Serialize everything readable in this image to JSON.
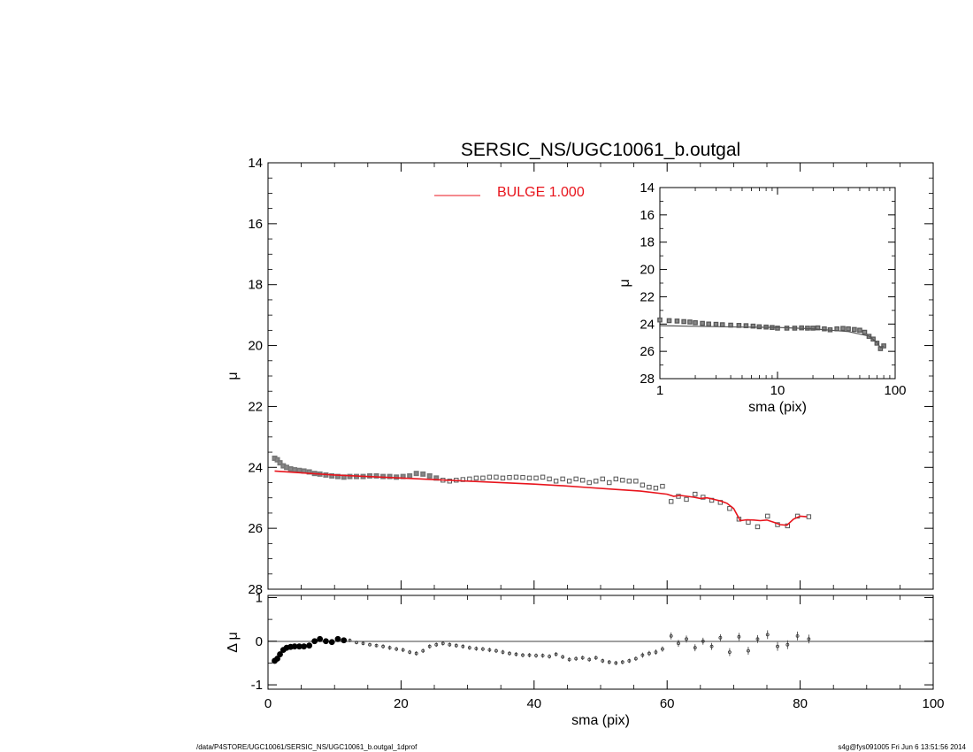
{
  "chart_data": [
    {
      "panel": "main",
      "type": "scatter",
      "title": "SERSIC_NS/UGC10061_b.outgal",
      "xlabel": "",
      "ylabel": "μ",
      "xlim": [
        0,
        100
      ],
      "ylim": [
        28,
        14
      ],
      "x_ticks": [
        "0",
        "20",
        "40",
        "60",
        "80",
        "100"
      ],
      "y_ticks": [
        "14",
        "16",
        "18",
        "20",
        "22",
        "24",
        "26",
        "28"
      ],
      "legend": {
        "label": "BULGE  1.000",
        "color": "#e8141c",
        "placement": "top-center"
      },
      "series": [
        {
          "role": "data",
          "style": "grey open squares",
          "x": [
            1.0,
            1.4,
            1.8,
            2.3,
            2.8,
            3.4,
            4.0,
            4.7,
            5.4,
            6.2,
            7.0,
            7.8,
            8.7,
            9.6,
            10.5,
            11.4,
            12.3,
            13.3,
            14.3,
            15.3,
            16.3,
            17.3,
            18.3,
            19.3,
            20.3,
            21.3,
            22.3,
            23.3,
            24.3,
            25.3,
            26.3,
            27.3,
            28.3,
            29.3,
            30.3,
            31.3,
            32.3,
            33.3,
            34.3,
            35.3,
            36.3,
            37.3,
            38.3,
            39.3,
            40.3,
            41.3,
            42.3,
            43.3,
            44.3,
            45.3,
            46.3,
            47.3,
            48.3,
            49.3,
            50.3,
            51.3,
            52.3,
            53.3,
            54.3,
            55.3,
            56.3,
            57.3,
            58.3,
            59.3,
            60.6,
            61.7,
            62.9,
            64.2,
            65.4,
            66.7,
            68.0,
            69.4,
            70.8,
            72.2,
            73.6,
            75.1,
            76.6,
            78.1,
            79.6,
            81.3
          ],
          "y": [
            23.7,
            23.75,
            23.85,
            23.95,
            24.0,
            24.05,
            24.08,
            24.1,
            24.12,
            24.15,
            24.2,
            24.22,
            24.25,
            24.28,
            24.3,
            24.32,
            24.3,
            24.3,
            24.3,
            24.28,
            24.28,
            24.3,
            24.3,
            24.32,
            24.3,
            24.28,
            24.2,
            24.22,
            24.28,
            24.35,
            24.42,
            24.45,
            24.42,
            24.4,
            24.38,
            24.35,
            24.35,
            24.32,
            24.32,
            24.35,
            24.33,
            24.32,
            24.33,
            24.35,
            24.35,
            24.32,
            24.38,
            24.45,
            24.38,
            24.45,
            24.38,
            24.42,
            24.5,
            24.45,
            24.38,
            24.5,
            24.38,
            24.42,
            24.45,
            24.45,
            24.58,
            24.65,
            24.68,
            24.62,
            25.12,
            24.95,
            25.05,
            24.88,
            24.98,
            25.08,
            25.15,
            25.35,
            25.7,
            25.8,
            25.95,
            25.6,
            25.88,
            25.92,
            25.6,
            25.62
          ]
        },
        {
          "role": "model",
          "name": "BULGE  1.000",
          "color": "#e8141c",
          "style": "line",
          "x": [
            1,
            10,
            20,
            30,
            40,
            44,
            48,
            52,
            56,
            60,
            61,
            62,
            63,
            64,
            65,
            66,
            67,
            68,
            69,
            70,
            71,
            72,
            73,
            74,
            75,
            76,
            77,
            78,
            79,
            80,
            81
          ],
          "y": [
            24.12,
            24.25,
            24.35,
            24.45,
            24.55,
            24.6,
            24.66,
            24.72,
            24.78,
            24.88,
            24.95,
            24.92,
            24.95,
            24.98,
            25.02,
            25.0,
            25.05,
            25.1,
            25.18,
            25.35,
            25.75,
            25.72,
            25.73,
            25.75,
            25.73,
            25.8,
            25.88,
            25.9,
            25.7,
            25.6,
            25.62
          ]
        }
      ]
    },
    {
      "panel": "residual",
      "type": "scatter",
      "xlabel": "sma (pix)",
      "ylabel": "Δ μ",
      "xlim": [
        0,
        100
      ],
      "ylim": [
        -1.1,
        1.05
      ],
      "x_ticks": [
        "0",
        "20",
        "40",
        "60",
        "80",
        "100"
      ],
      "y_ticks": [
        "1",
        "0",
        "-1"
      ],
      "grid": false,
      "reference_line": 0,
      "series": [
        {
          "role": "residual",
          "style": "black points with error bars",
          "x": [
            1.0,
            1.4,
            1.8,
            2.3,
            2.8,
            3.4,
            4.0,
            4.7,
            5.4,
            6.2,
            7.0,
            7.8,
            8.7,
            9.6,
            10.5,
            11.4,
            12.3,
            13.3,
            14.3,
            15.3,
            16.3,
            17.3,
            18.3,
            19.3,
            20.3,
            21.3,
            22.3,
            23.3,
            24.3,
            25.3,
            26.3,
            27.3,
            28.3,
            29.3,
            30.3,
            31.3,
            32.3,
            33.3,
            34.3,
            35.3,
            36.3,
            37.3,
            38.3,
            39.3,
            40.3,
            41.3,
            42.3,
            43.3,
            44.3,
            45.3,
            46.3,
            47.3,
            48.3,
            49.3,
            50.3,
            51.3,
            52.3,
            53.3,
            54.3,
            55.3,
            56.3,
            57.3,
            58.3,
            59.3,
            60.6,
            61.7,
            62.9,
            64.2,
            65.4,
            66.7,
            68.0,
            69.4,
            70.8,
            72.2,
            73.6,
            75.1,
            76.6,
            78.1,
            79.6,
            81.3
          ],
          "y": [
            -0.45,
            -0.4,
            -0.3,
            -0.2,
            -0.15,
            -0.13,
            -0.12,
            -0.12,
            -0.12,
            -0.1,
            0.0,
            0.05,
            0.0,
            -0.02,
            0.05,
            0.02,
            0.02,
            -0.03,
            -0.05,
            -0.08,
            -0.1,
            -0.12,
            -0.15,
            -0.18,
            -0.2,
            -0.25,
            -0.28,
            -0.22,
            -0.12,
            -0.08,
            -0.05,
            -0.08,
            -0.1,
            -0.12,
            -0.15,
            -0.17,
            -0.18,
            -0.2,
            -0.22,
            -0.25,
            -0.28,
            -0.3,
            -0.32,
            -0.32,
            -0.33,
            -0.33,
            -0.35,
            -0.3,
            -0.36,
            -0.42,
            -0.4,
            -0.38,
            -0.42,
            -0.38,
            -0.45,
            -0.48,
            -0.5,
            -0.48,
            -0.45,
            -0.4,
            -0.32,
            -0.28,
            -0.25,
            -0.18,
            0.12,
            -0.05,
            0.05,
            -0.15,
            0.0,
            -0.12,
            0.08,
            -0.25,
            0.1,
            -0.22,
            0.05,
            0.15,
            -0.12,
            -0.08,
            0.12,
            0.05
          ],
          "err": [
            0.03,
            0.03,
            0.03,
            0.03,
            0.03,
            0.03,
            0.03,
            0.03,
            0.03,
            0.03,
            0.03,
            0.03,
            0.04,
            0.04,
            0.04,
            0.04,
            0.04,
            0.04,
            0.04,
            0.04,
            0.04,
            0.05,
            0.05,
            0.05,
            0.05,
            0.05,
            0.05,
            0.05,
            0.05,
            0.05,
            0.05,
            0.05,
            0.05,
            0.05,
            0.05,
            0.05,
            0.05,
            0.05,
            0.05,
            0.05,
            0.05,
            0.05,
            0.05,
            0.05,
            0.05,
            0.05,
            0.05,
            0.05,
            0.05,
            0.05,
            0.05,
            0.05,
            0.05,
            0.05,
            0.05,
            0.05,
            0.05,
            0.05,
            0.05,
            0.05,
            0.06,
            0.06,
            0.06,
            0.06,
            0.08,
            0.08,
            0.08,
            0.08,
            0.08,
            0.08,
            0.08,
            0.09,
            0.09,
            0.09,
            0.09,
            0.1,
            0.1,
            0.1,
            0.1,
            0.1
          ]
        }
      ]
    },
    {
      "panel": "inset",
      "type": "scatter",
      "xlabel": "sma (pix)",
      "ylabel": "μ",
      "xscale": "log",
      "xlim": [
        1,
        100
      ],
      "ylim": [
        28,
        14
      ],
      "x_ticks": [
        "1",
        "10",
        "100"
      ],
      "y_ticks": [
        "14",
        "16",
        "18",
        "20",
        "22",
        "24",
        "26",
        "28"
      ],
      "series": [
        {
          "role": "data",
          "style": "grey open squares",
          "x": [
            1.0,
            1.2,
            1.4,
            1.6,
            1.8,
            2.0,
            2.3,
            2.6,
            3.0,
            3.4,
            4.0,
            4.7,
            5.4,
            6.2,
            7.0,
            8.0,
            9.0,
            10.0,
            12.0,
            14.0,
            16.0,
            18.0,
            20.0,
            22.0,
            25.0,
            28.0,
            32.0,
            36.0,
            40.0,
            45.0,
            50.0,
            55.0,
            60.0,
            65.0,
            70.0,
            75.0,
            80.0
          ],
          "y": [
            23.7,
            23.75,
            23.78,
            23.82,
            23.85,
            23.9,
            23.95,
            24.0,
            24.02,
            24.05,
            24.08,
            24.1,
            24.12,
            24.15,
            24.2,
            24.22,
            24.25,
            24.3,
            24.3,
            24.3,
            24.28,
            24.3,
            24.3,
            24.28,
            24.35,
            24.42,
            24.35,
            24.32,
            24.35,
            24.4,
            24.45,
            24.6,
            24.9,
            25.1,
            25.4,
            25.8,
            25.6
          ]
        },
        {
          "role": "model",
          "color": "#555555",
          "style": "line",
          "x": [
            1,
            2,
            5,
            10,
            20,
            40,
            60,
            70,
            75,
            80
          ],
          "y": [
            24.12,
            24.16,
            24.22,
            24.25,
            24.35,
            24.55,
            24.88,
            25.35,
            25.73,
            25.6
          ]
        }
      ]
    }
  ],
  "footer": {
    "left": "/data/P4STORE/UGC10061/SERSIC_NS/UGC10061_b.outgal_1dprof",
    "right": "s4g@fys091005  Fri Jun  6 13:51:56 2014"
  }
}
